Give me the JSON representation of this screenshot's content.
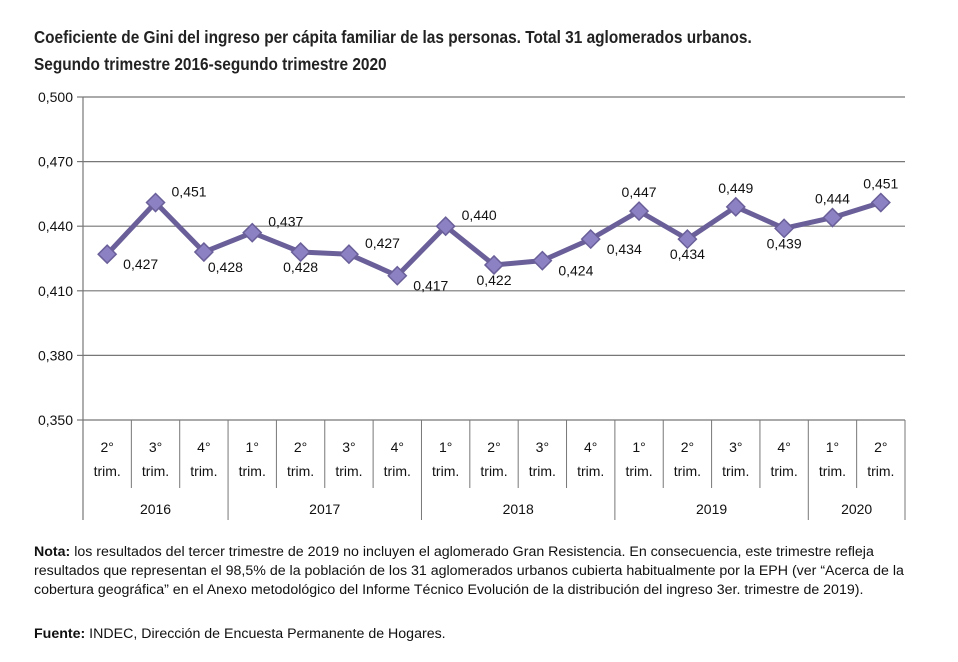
{
  "title_line1": "Coeficiente de Gini del ingreso per cápita familiar de las personas. Total 31 aglomerados urbanos.",
  "title_line2": "Segundo trimestre 2016-segundo trimestre 2020",
  "chart_data": {
    "type": "line",
    "ylim": [
      0.35,
      0.5
    ],
    "yticks": [
      "0,500",
      "0,470",
      "0,440",
      "0,410",
      "0,380",
      "0,350"
    ],
    "ytick_values": [
      0.5,
      0.47,
      0.44,
      0.41,
      0.38,
      0.35
    ],
    "grid": true,
    "categories": [
      {
        "q": "2°",
        "t": "trim."
      },
      {
        "q": "3°",
        "t": "trim."
      },
      {
        "q": "4°",
        "t": "trim."
      },
      {
        "q": "1°",
        "t": "trim."
      },
      {
        "q": "2°",
        "t": "trim."
      },
      {
        "q": "3°",
        "t": "trim."
      },
      {
        "q": "4°",
        "t": "trim."
      },
      {
        "q": "1°",
        "t": "trim."
      },
      {
        "q": "2°",
        "t": "trim."
      },
      {
        "q": "3°",
        "t": "trim."
      },
      {
        "q": "4°",
        "t": "trim."
      },
      {
        "q": "1°",
        "t": "trim."
      },
      {
        "q": "2°",
        "t": "trim."
      },
      {
        "q": "3°",
        "t": "trim."
      },
      {
        "q": "4°",
        "t": "trim."
      },
      {
        "q": "1°",
        "t": "trim."
      },
      {
        "q": "2°",
        "t": "trim."
      }
    ],
    "years": [
      {
        "label": "2016",
        "span": 3
      },
      {
        "label": "2017",
        "span": 4
      },
      {
        "label": "2018",
        "span": 4
      },
      {
        "label": "2019",
        "span": 4
      },
      {
        "label": "2020",
        "span": 2
      }
    ],
    "values": [
      0.427,
      0.451,
      0.428,
      0.437,
      0.428,
      0.427,
      0.417,
      0.44,
      0.422,
      0.424,
      0.434,
      0.447,
      0.434,
      0.449,
      0.439,
      0.444,
      0.451
    ],
    "labels": [
      "0,427",
      "0,451",
      "0,428",
      "0,437",
      "0,428",
      "0,427",
      "0,417",
      "0,440",
      "0,422",
      "0,424",
      "0,434",
      "0,447",
      "0,434",
      "0,449",
      "0,439",
      "0,444",
      "0,451"
    ],
    "line_color": "#6a5f99",
    "marker_color": "#8c81c2"
  },
  "note_label": "Nota:",
  "note_text": " los resultados del tercer trimestre de 2019 no incluyen el aglomerado Gran Resistencia. En consecuencia, este trimestre refleja resultados que representan el 98,5% de la población de los 31 aglomerados urbanos cubierta habitualmente por la EPH (ver “Acerca de la cobertura geográfica” en el Anexo metodológico del Informe Técnico Evolución de la distribución del ingreso 3er. trimestre de 2019).",
  "source_label": "Fuente:",
  "source_text": " INDEC, Dirección de Encuesta Permanente de Hogares."
}
